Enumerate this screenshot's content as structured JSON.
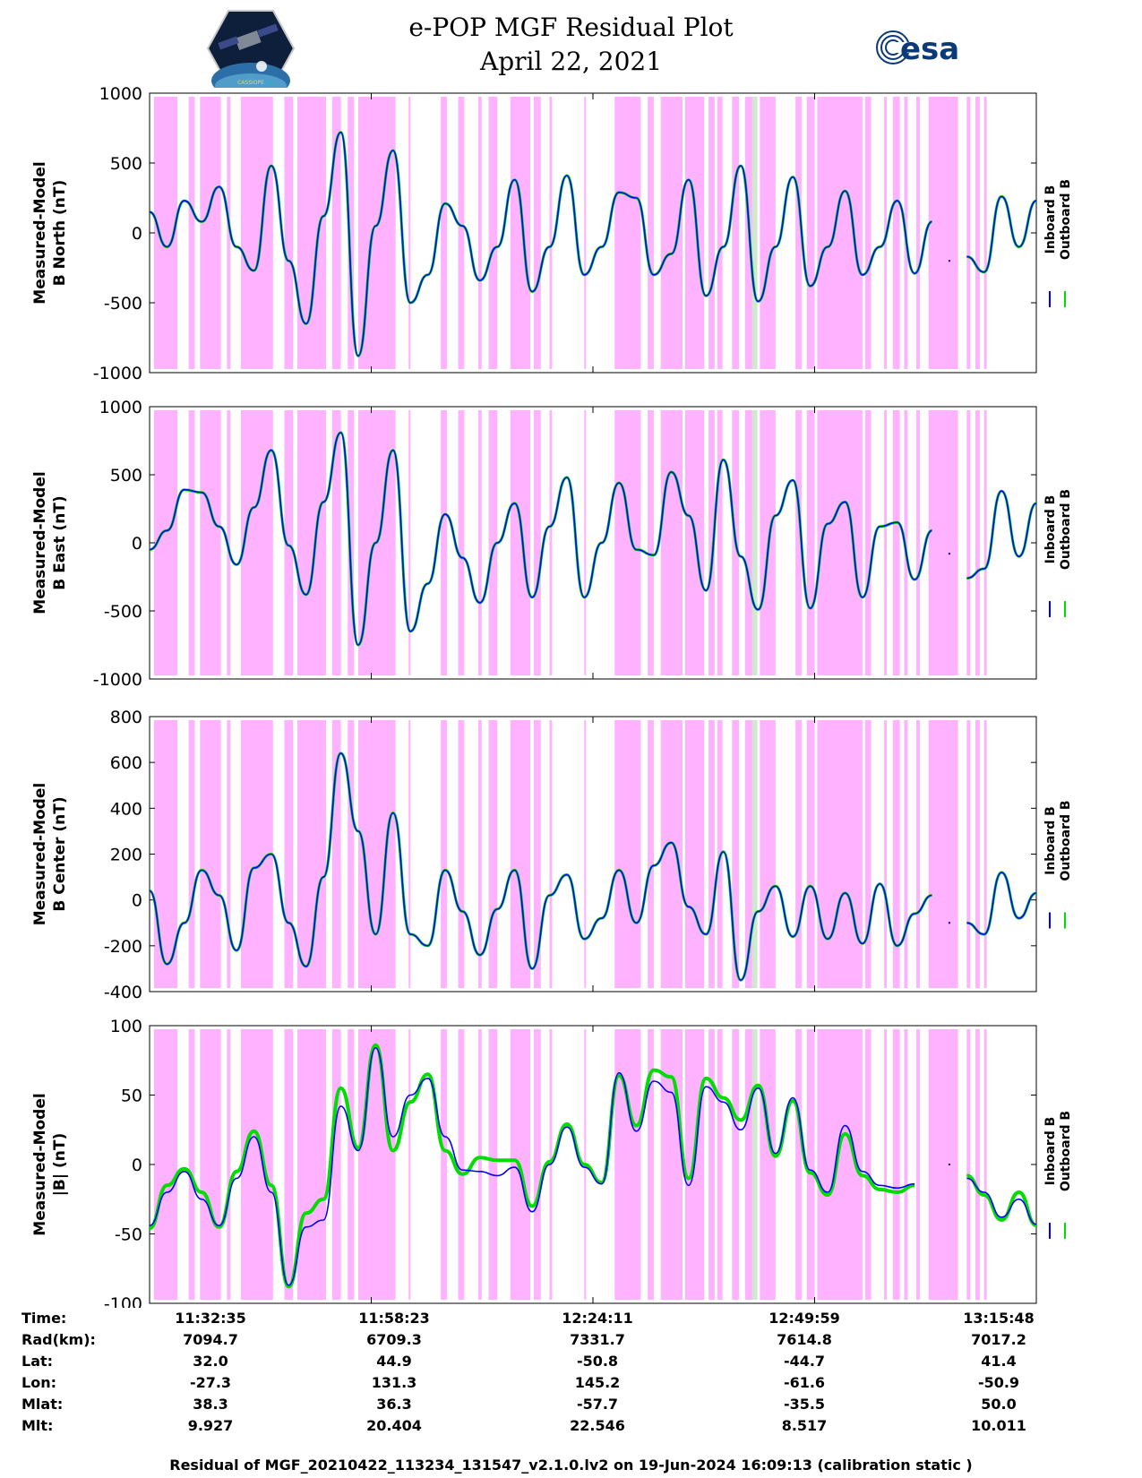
{
  "header": {
    "title": "e-POP MGF Residual Plot",
    "date": "April 22, 2021",
    "logo_left": "CASSIOPE",
    "logo_right": "esa"
  },
  "chart_data": [
    {
      "type": "line",
      "panel": "B North",
      "ylabel_line1": "Measured-Model",
      "ylabel_line2": "B North (nT)",
      "ylim": [
        -1000,
        1000
      ],
      "yticks": [
        "1000",
        "500",
        "0",
        "-500",
        "-1000"
      ],
      "series": [
        {
          "name": "Inboard B",
          "color": "#0000ff"
        },
        {
          "name": "Outboard B",
          "color": "#00dd00"
        }
      ],
      "x_minutes": [
        0,
        2,
        4,
        6,
        8,
        10,
        12,
        14,
        16,
        18,
        20,
        22,
        24,
        26,
        28,
        30,
        32,
        34,
        36,
        38,
        40,
        42,
        44,
        46,
        48,
        50,
        52,
        54,
        56,
        58,
        60,
        62,
        64,
        66,
        68,
        70,
        72,
        74,
        76,
        78,
        80,
        82,
        84,
        86,
        88,
        90,
        92,
        94,
        96,
        98,
        100,
        102
      ],
      "values": [
        150,
        -100,
        230,
        80,
        330,
        -100,
        -270,
        480,
        -200,
        -650,
        120,
        720,
        -880,
        50,
        590,
        -500,
        -300,
        210,
        50,
        -340,
        -100,
        380,
        -420,
        -100,
        410,
        -300,
        -100,
        290,
        250,
        -300,
        -150,
        380,
        -450,
        -100,
        480,
        -490,
        -100,
        400,
        -380,
        -100,
        300,
        -300,
        -100,
        230,
        -290,
        80,
        null,
        -170,
        -280,
        260,
        -100,
        230
      ],
      "gaps_after": [
        45,
        46,
        47
      ],
      "legend": {
        "inboard": "Inboard B",
        "outboard": "Outboard B"
      }
    },
    {
      "type": "line",
      "panel": "B East",
      "ylabel_line1": "Measured-Model",
      "ylabel_line2": "B East (nT)",
      "ylim": [
        -1000,
        1000
      ],
      "yticks": [
        "1000",
        "500",
        "0",
        "-500",
        "-1000"
      ],
      "series": [
        {
          "name": "Inboard B",
          "color": "#0000ff"
        },
        {
          "name": "Outboard B",
          "color": "#00dd00"
        }
      ],
      "x_minutes": [
        0,
        2,
        4,
        6,
        8,
        10,
        12,
        14,
        16,
        18,
        20,
        22,
        24,
        26,
        28,
        30,
        32,
        34,
        36,
        38,
        40,
        42,
        44,
        46,
        48,
        50,
        52,
        54,
        56,
        58,
        60,
        62,
        64,
        66,
        68,
        70,
        72,
        74,
        76,
        78,
        80,
        82,
        84,
        86,
        88,
        90,
        92,
        94,
        96,
        98,
        100,
        102
      ],
      "values": [
        -50,
        90,
        390,
        370,
        120,
        -160,
        260,
        680,
        -20,
        -380,
        300,
        810,
        -750,
        0,
        680,
        -650,
        -300,
        210,
        -110,
        -440,
        0,
        290,
        -400,
        120,
        480,
        -400,
        0,
        440,
        -50,
        -90,
        520,
        200,
        -350,
        610,
        -100,
        -490,
        200,
        460,
        -480,
        140,
        300,
        -400,
        120,
        150,
        -270,
        90,
        null,
        -260,
        -190,
        380,
        -100,
        290
      ],
      "gaps_after": [
        45,
        46,
        47
      ],
      "legend": {
        "inboard": "Inboard B",
        "outboard": "Outboard B"
      }
    },
    {
      "type": "line",
      "panel": "B Center",
      "ylabel_line1": "Measured-Model",
      "ylabel_line2": "B Center (nT)",
      "ylim": [
        -400,
        800
      ],
      "yticks": [
        "800",
        "600",
        "400",
        "200",
        "0",
        "-200",
        "-400"
      ],
      "series": [
        {
          "name": "Inboard B",
          "color": "#0000ff"
        },
        {
          "name": "Outboard B",
          "color": "#00dd00"
        }
      ],
      "x_minutes": [
        0,
        2,
        4,
        6,
        8,
        10,
        12,
        14,
        16,
        18,
        20,
        22,
        24,
        26,
        28,
        30,
        32,
        34,
        36,
        38,
        40,
        42,
        44,
        46,
        48,
        50,
        52,
        54,
        56,
        58,
        60,
        62,
        64,
        66,
        68,
        70,
        72,
        74,
        76,
        78,
        80,
        82,
        84,
        86,
        88,
        90,
        92,
        94,
        96,
        98,
        100,
        102
      ],
      "values": [
        40,
        -280,
        -100,
        130,
        20,
        -220,
        140,
        200,
        -100,
        -290,
        100,
        640,
        300,
        -150,
        380,
        -150,
        -200,
        130,
        -50,
        -240,
        -40,
        130,
        -300,
        20,
        110,
        -170,
        -80,
        130,
        -100,
        150,
        250,
        -30,
        -150,
        210,
        -350,
        -50,
        60,
        -160,
        60,
        -170,
        30,
        -190,
        70,
        -200,
        -60,
        20,
        null,
        -100,
        -150,
        120,
        -80,
        30
      ],
      "gaps_after": [
        45,
        46,
        47
      ],
      "legend": {
        "inboard": "Inboard B",
        "outboard": "Outboard B"
      }
    },
    {
      "type": "line",
      "panel": "|B|",
      "ylabel_line1": "Measured-Model",
      "ylabel_line2": "|B| (nT)",
      "ylim": [
        -100,
        100
      ],
      "yticks": [
        "100",
        "50",
        "0",
        "-50",
        "-100"
      ],
      "series": [
        {
          "name": "Inboard B",
          "color": "#0000ff",
          "values": [
            -44,
            -20,
            -5,
            -25,
            -44,
            -10,
            20,
            -20,
            -87,
            -45,
            -40,
            42,
            10,
            84,
            20,
            50,
            62,
            20,
            -4,
            -5,
            -8,
            -2,
            -34,
            0,
            27,
            -2,
            -14,
            66,
            24,
            60,
            52,
            -15,
            56,
            45,
            25,
            55,
            8,
            48,
            -4,
            -20,
            28,
            -5,
            -15,
            -17,
            -14,
            null,
            null,
            -10,
            -20,
            -38,
            -25,
            -43
          ]
        },
        {
          "name": "Outboard B",
          "color": "#00dd00",
          "values": [
            -46,
            -15,
            -3,
            -20,
            -45,
            -5,
            24,
            -15,
            -88,
            -35,
            -25,
            55,
            12,
            86,
            10,
            45,
            65,
            10,
            -7,
            5,
            3,
            3,
            -30,
            2,
            29,
            0,
            -13,
            64,
            28,
            68,
            63,
            -10,
            62,
            48,
            32,
            57,
            6,
            46,
            -6,
            -22,
            22,
            -8,
            -18,
            -20,
            -15,
            null,
            null,
            -8,
            -22,
            -40,
            -20,
            -44
          ]
        }
      ],
      "x_minutes": [
        0,
        2,
        4,
        6,
        8,
        10,
        12,
        14,
        16,
        18,
        20,
        22,
        24,
        26,
        28,
        30,
        32,
        34,
        36,
        38,
        40,
        42,
        44,
        46,
        48,
        50,
        52,
        54,
        56,
        58,
        60,
        62,
        64,
        66,
        68,
        70,
        72,
        74,
        76,
        78,
        80,
        82,
        84,
        86,
        88,
        90,
        92,
        94,
        96,
        98,
        100,
        102
      ],
      "legend": {
        "inboard": "Inboard B",
        "outboard": "Outboard B"
      }
    }
  ],
  "x_axis_table": {
    "row_labels": [
      "Time:",
      "Rad(km):",
      "Lat:",
      "Lon:",
      "Mlat:",
      "Mlt:"
    ],
    "columns": [
      [
        "11:32:35",
        "7094.7",
        "32.0",
        "-27.3",
        "38.3",
        "9.927"
      ],
      [
        "11:58:23",
        "6709.3",
        "44.9",
        "131.3",
        "36.3",
        "20.404"
      ],
      [
        "12:24:11",
        "7331.7",
        "-50.8",
        "145.2",
        "-57.7",
        "22.546"
      ],
      [
        "12:49:59",
        "7614.8",
        "-44.7",
        "-61.6",
        "-35.5",
        "8.517"
      ],
      [
        "13:15:48",
        "7017.2",
        "41.4",
        "-50.9",
        "50.0",
        "10.011"
      ]
    ]
  },
  "shading": {
    "color": "#ff88ff",
    "intervals_minutes": [
      [
        0.5,
        3.2
      ],
      [
        4.5,
        5.2
      ],
      [
        5.8,
        8.2
      ],
      [
        8.9,
        9.3
      ],
      [
        10.5,
        14.2
      ],
      [
        15.5,
        16.5
      ],
      [
        17.0,
        20.3
      ],
      [
        21.0,
        22.0
      ],
      [
        22.8,
        23.5
      ],
      [
        24.0,
        28.3
      ],
      [
        29.8,
        30.0
      ],
      [
        33.5,
        34.2
      ],
      [
        35.5,
        36.2
      ],
      [
        37.8,
        38.2
      ],
      [
        39.0,
        40.0
      ],
      [
        41.5,
        43.8
      ],
      [
        44.2,
        45.0
      ],
      [
        46.0,
        46.3
      ],
      [
        50.0,
        50.2
      ],
      [
        53.5,
        56.5
      ],
      [
        57.3,
        58.0
      ],
      [
        58.8,
        61.3
      ],
      [
        61.6,
        63.8
      ],
      [
        64.3,
        65.0
      ],
      [
        65.3,
        65.9
      ],
      [
        67.0,
        67.8
      ],
      [
        68.5,
        69.5
      ],
      [
        70.2,
        72.0
      ],
      [
        74.3,
        75.0
      ],
      [
        75.6,
        76.5
      ],
      [
        76.8,
        82.0
      ],
      [
        82.3,
        83.0
      ],
      [
        84.5,
        84.8
      ],
      [
        85.5,
        86.3
      ],
      [
        86.8,
        87.2
      ],
      [
        88.2,
        88.6
      ],
      [
        89.6,
        93.0
      ],
      [
        94.0,
        94.4
      ],
      [
        95.0,
        95.5
      ],
      [
        96.0,
        96.3
      ]
    ],
    "light_green_at_minute": 69.3
  },
  "footer": "Residual of MGF_20210422_113234_131547_v2.1.0.lv2 on 19-Jun-2024 16:09:13 (calibration static )"
}
